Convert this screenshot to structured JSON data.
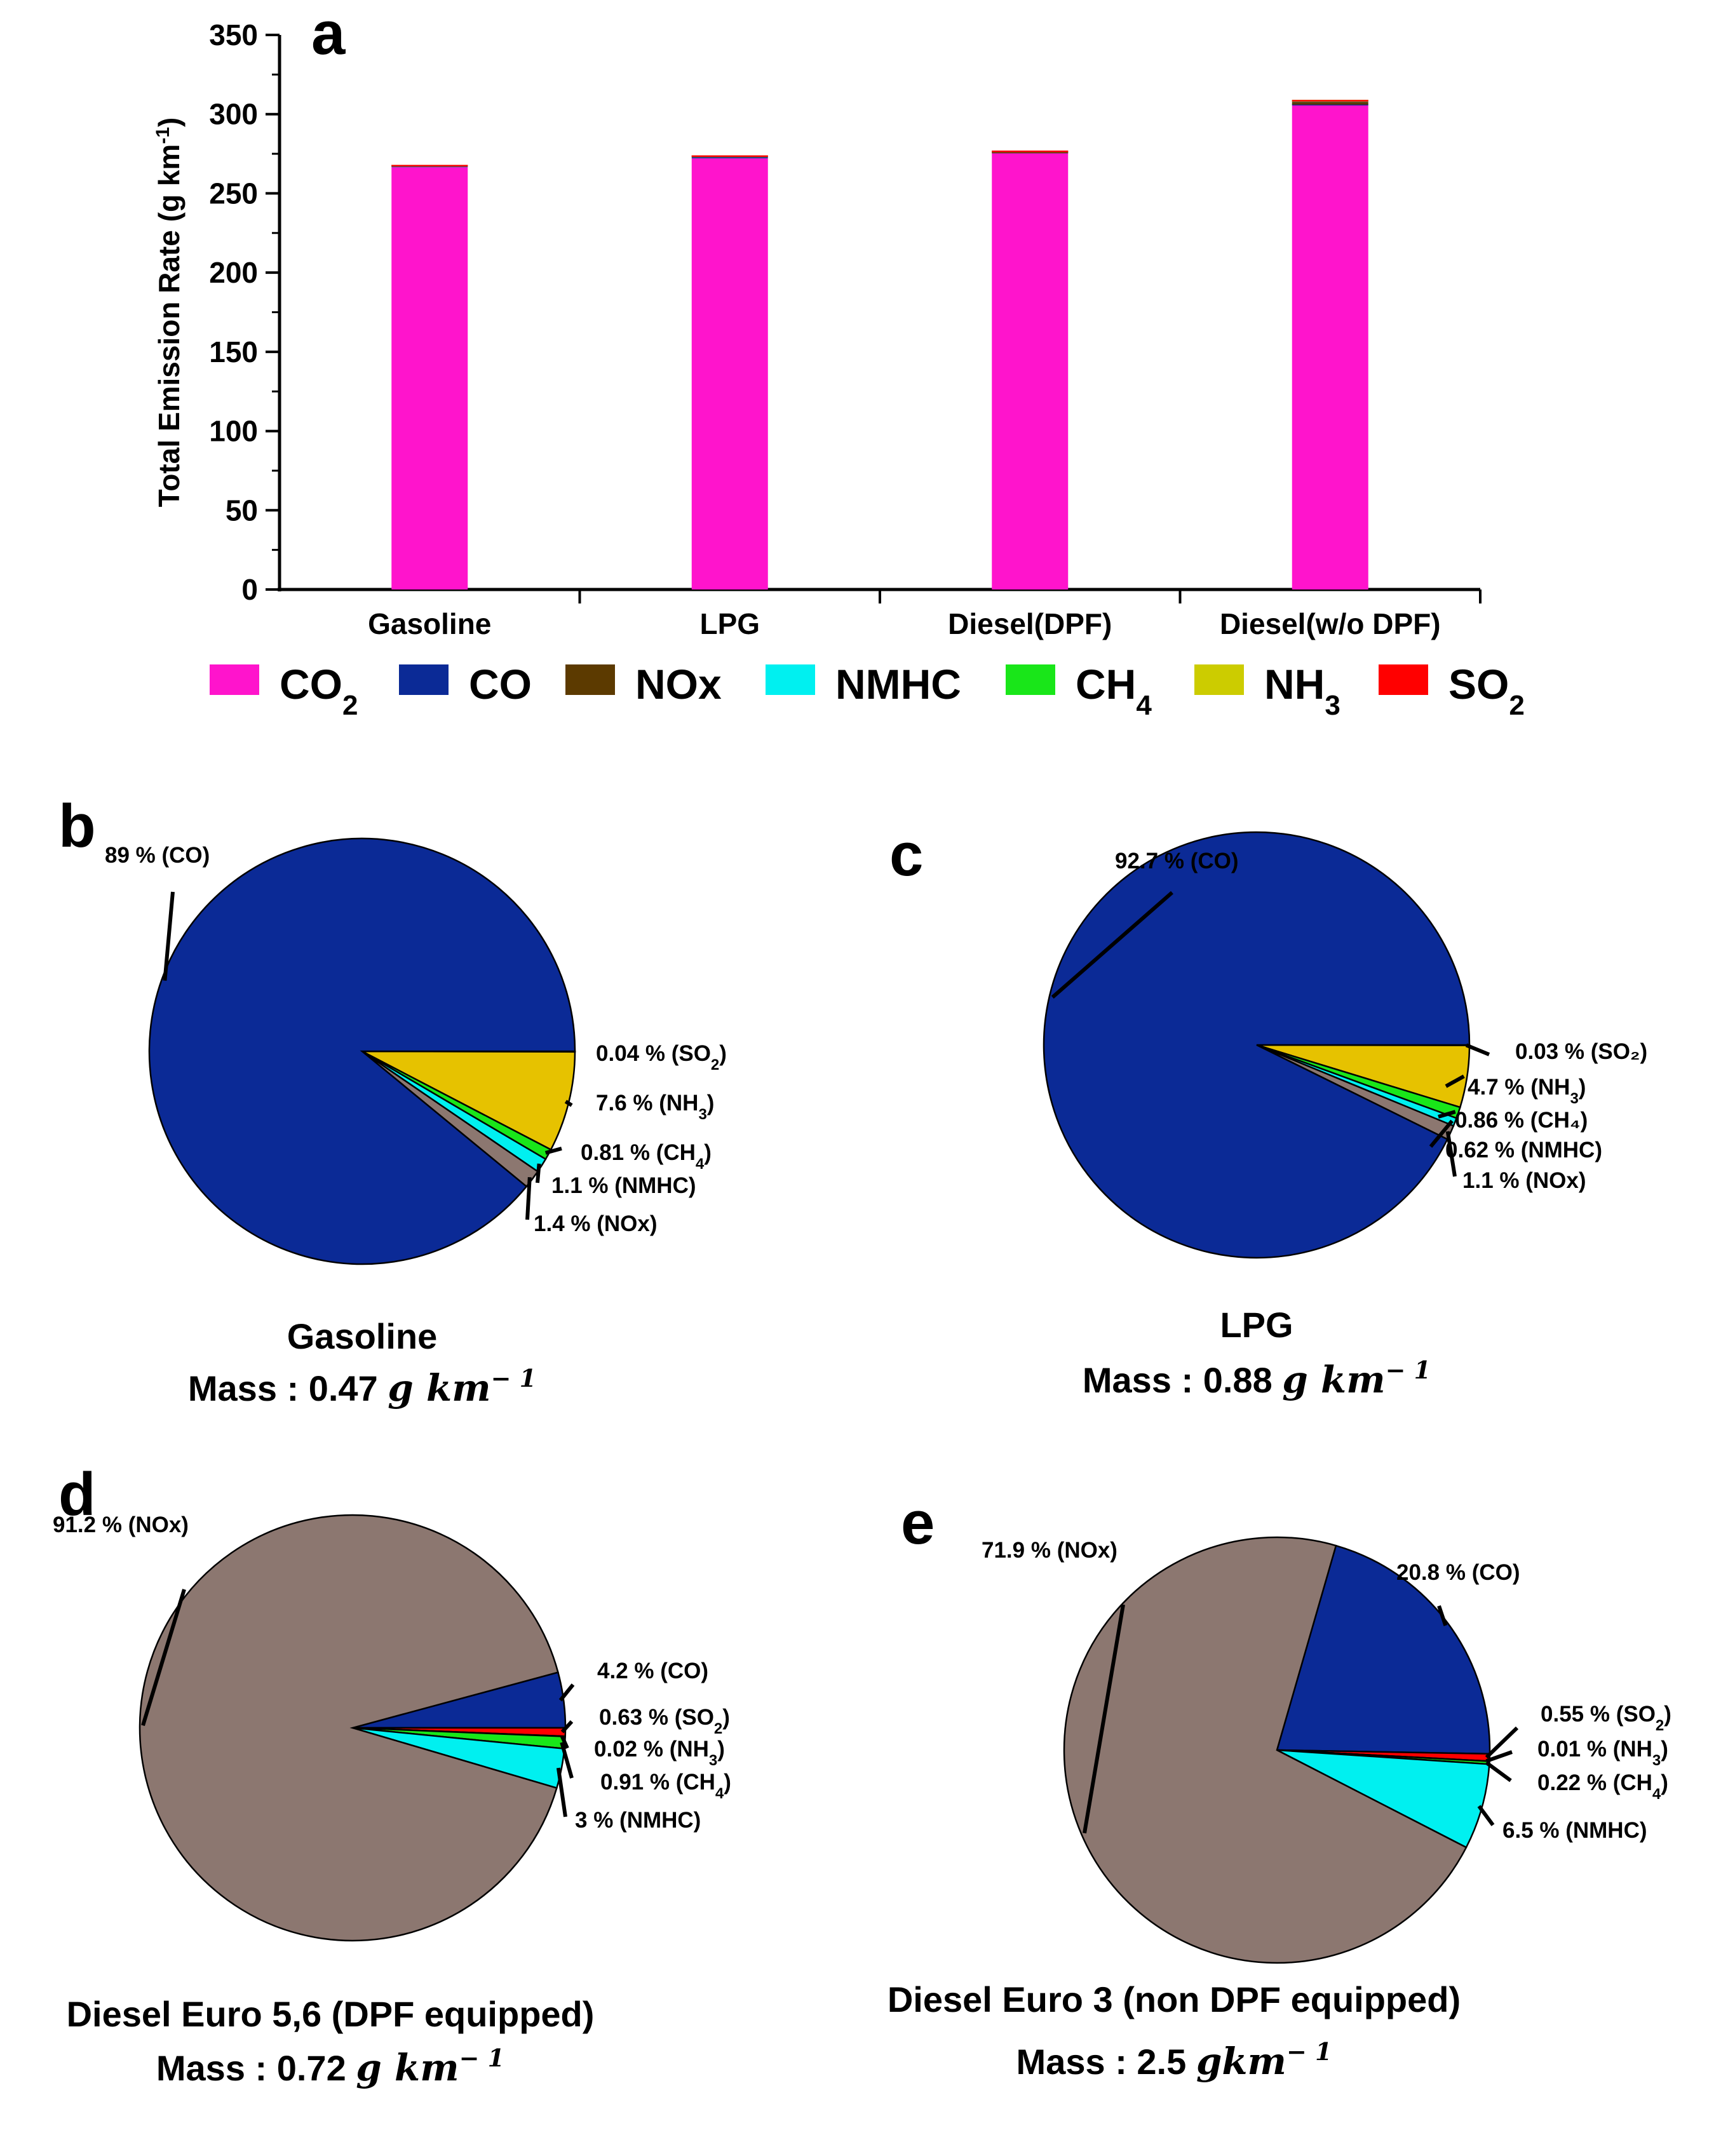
{
  "chart_data": [
    {
      "type": "bar",
      "panel": "a",
      "ylabel": "Total Emission Rate (g km",
      "ylabel_sup": "-1",
      "ylabel_close": ")",
      "ylim": [
        0,
        350
      ],
      "yticks": [
        0,
        50,
        100,
        150,
        200,
        250,
        300,
        350
      ],
      "categories": [
        "Gasoline",
        "LPG",
        "Diesel(DPF)",
        "Diesel(w/o DPF)"
      ],
      "stacked": true,
      "series": [
        {
          "name": "CO",
          "sub": "2",
          "color": "#ff14cc",
          "values": [
            266.5,
            272.1,
            275.3,
            305.5
          ]
        },
        {
          "name": "CO",
          "sub": "",
          "color": "#0b2a96",
          "values": [
            0.42,
            0.82,
            0.03,
            0.52
          ]
        },
        {
          "name": "NOx",
          "sub": "",
          "color": "#5c3a00",
          "values": [
            0.007,
            0.01,
            0.66,
            1.8
          ]
        },
        {
          "name": "NMHC",
          "sub": "",
          "color": "#00f0f0",
          "values": [
            0.005,
            0.005,
            0.02,
            0.16
          ]
        },
        {
          "name": "CH",
          "sub": "4",
          "color": "#19e619",
          "values": [
            0.004,
            0.008,
            0.007,
            0.006
          ]
        },
        {
          "name": "NH",
          "sub": "3",
          "color": "#cccc00",
          "values": [
            0.036,
            0.041,
            0.0001,
            0.0002
          ]
        },
        {
          "name": "SO",
          "sub": "2",
          "color": "#ff0000",
          "values": [
            0.0002,
            0.0003,
            0.005,
            0.014
          ]
        }
      ]
    },
    {
      "type": "pie",
      "panel": "b",
      "title": "Gasoline",
      "mass_prefix": "Mass : 0.47 ",
      "mass_unit": "g km",
      "mass_exp": "− 1",
      "slices": [
        {
          "name": "SO2",
          "value": 0.04,
          "label": "0.04 % (SO",
          "label_sub": "2",
          "label_end": ")",
          "color": "#ff0000"
        },
        {
          "name": "NH3",
          "value": 7.6,
          "label": "7.6 % (NH",
          "label_sub": "3",
          "label_end": ")",
          "color": "#e6c200"
        },
        {
          "name": "CH4",
          "value": 0.81,
          "label": "0.81 % (CH",
          "label_sub": "4",
          "label_end": ")",
          "color": "#19e619"
        },
        {
          "name": "NMHC",
          "value": 1.1,
          "label": "1.1 % (NMHC)",
          "label_sub": "",
          "label_end": "",
          "color": "#00f0f0"
        },
        {
          "name": "NOx",
          "value": 1.4,
          "label": "1.4 % (NOx)",
          "label_sub": "",
          "label_end": "",
          "color": "#8c7770"
        },
        {
          "name": "CO",
          "value": 89,
          "label": "89 % (CO)",
          "label_sub": "",
          "label_end": "",
          "color": "#0b2a96"
        }
      ]
    },
    {
      "type": "pie",
      "panel": "c",
      "title": "LPG",
      "mass_prefix": "Mass : 0.88 ",
      "mass_unit": "g km",
      "mass_exp": "− 1",
      "slices": [
        {
          "name": "SO2",
          "value": 0.03,
          "label": "0.03 % (SO₂)",
          "label_sub": "",
          "label_end": "",
          "color": "#ff0000"
        },
        {
          "name": "NH3",
          "value": 4.7,
          "label": "4.7 % (NH",
          "label_sub": "3",
          "label_end": ")",
          "color": "#e6c200"
        },
        {
          "name": "CH4",
          "value": 0.86,
          "label": "0.86 % (CH₄)",
          "label_sub": "",
          "label_end": "",
          "color": "#19e619"
        },
        {
          "name": "NMHC",
          "value": 0.62,
          "label": "0.62 % (NMHC)",
          "label_sub": "",
          "label_end": "",
          "color": "#00f0f0"
        },
        {
          "name": "NOx",
          "value": 1.1,
          "label": "1.1 % (NOx)",
          "label_sub": "",
          "label_end": "",
          "color": "#8c7770"
        },
        {
          "name": "CO",
          "value": 92.7,
          "label": "92.7 % (CO)",
          "label_sub": "",
          "label_end": "",
          "color": "#0b2a96"
        }
      ]
    },
    {
      "type": "pie",
      "panel": "d",
      "title": "Diesel Euro 5,6 (DPF equipped)",
      "mass_prefix": "Mass : 0.72 ",
      "mass_unit": "g km",
      "mass_exp": "− 1",
      "slices": [
        {
          "name": "CO",
          "value": 4.2,
          "label": "4.2 % (CO)",
          "label_sub": "",
          "label_end": "",
          "color": "#0b2a96"
        },
        {
          "name": "SO2",
          "value": 0.63,
          "label": "0.63 % (SO",
          "label_sub": "2",
          "label_end": ")",
          "color": "#ff0000"
        },
        {
          "name": "NH3",
          "value": 0.02,
          "label": "0.02 % (NH",
          "label_sub": "3",
          "label_end": ")",
          "color": "#e6c200"
        },
        {
          "name": "CH4",
          "value": 0.91,
          "label": "0.91 % (CH",
          "label_sub": "4",
          "label_end": ")",
          "color": "#19e619"
        },
        {
          "name": "NMHC",
          "value": 3,
          "label": "3 % (NMHC)",
          "label_sub": "",
          "label_end": "",
          "color": "#00f0f0"
        },
        {
          "name": "NOx",
          "value": 91.2,
          "label": "91.2 % (NOx)",
          "label_sub": "",
          "label_end": "",
          "color": "#8c7770"
        }
      ]
    },
    {
      "type": "pie",
      "panel": "e",
      "title": "Diesel Euro 3 (non DPF equipped)",
      "mass_prefix": "Mass : 2.5 ",
      "mass_unit": "gkm",
      "mass_exp": "− 1",
      "slices": [
        {
          "name": "CO",
          "value": 20.8,
          "label": "20.8 % (CO)",
          "label_sub": "",
          "label_end": "",
          "color": "#0b2a96"
        },
        {
          "name": "SO2",
          "value": 0.55,
          "label": "0.55 % (SO",
          "label_sub": "2",
          "label_end": ")",
          "color": "#ff0000"
        },
        {
          "name": "NH3",
          "value": 0.01,
          "label": "0.01 % (NH",
          "label_sub": "3",
          "label_end": ")",
          "color": "#e6c200"
        },
        {
          "name": "CH4",
          "value": 0.22,
          "label": "0.22 % (CH",
          "label_sub": "4",
          "label_end": ")",
          "color": "#19e619"
        },
        {
          "name": "NMHC",
          "value": 6.5,
          "label": "6.5 % (NMHC)",
          "label_sub": "",
          "label_end": "",
          "color": "#00f0f0"
        },
        {
          "name": "NOx",
          "value": 71.9,
          "label": "71.9 % (NOx)",
          "label_sub": "",
          "label_end": "",
          "color": "#8c7770"
        }
      ]
    }
  ]
}
